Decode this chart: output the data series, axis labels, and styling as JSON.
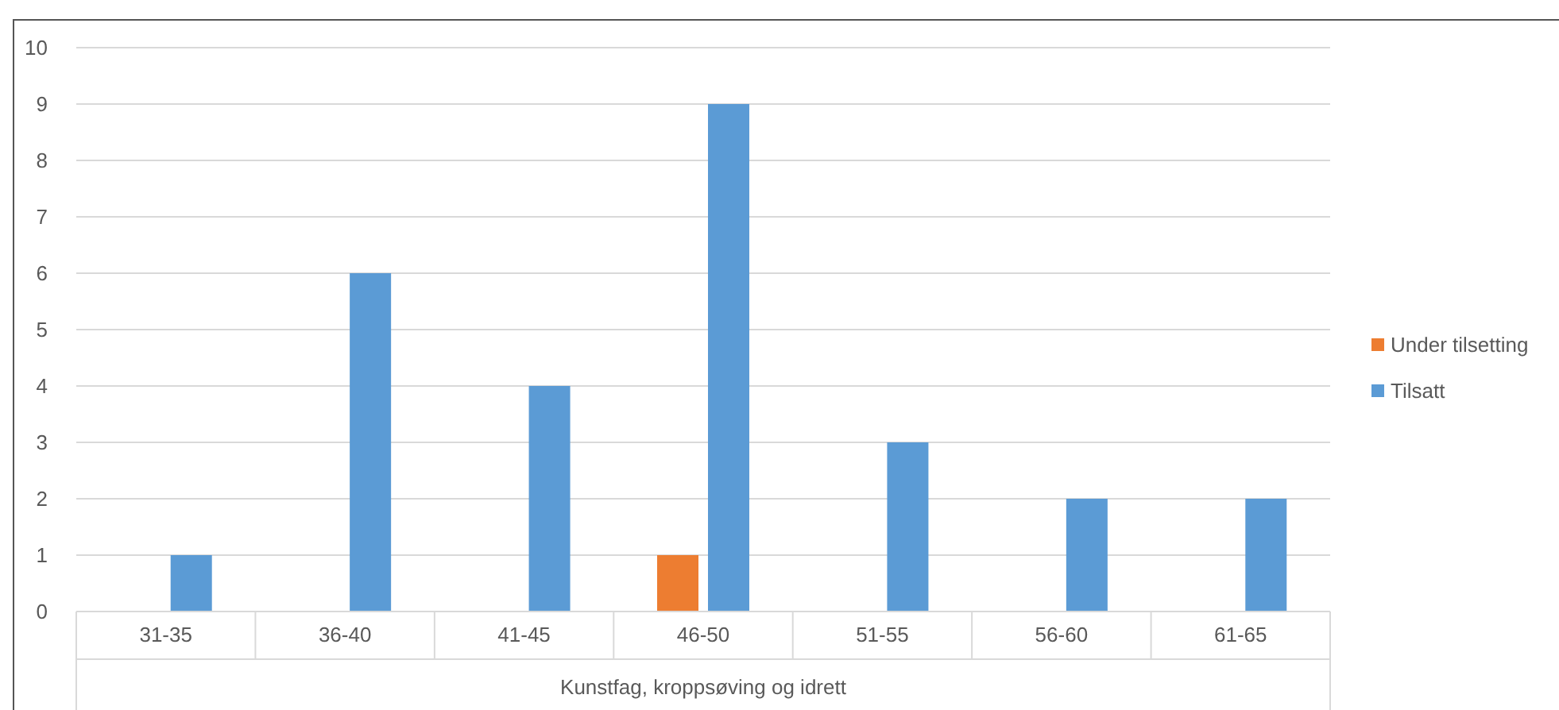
{
  "chart_data": {
    "type": "bar",
    "xlabel": "Kunstfag, kroppsøving og idrett",
    "categories": [
      "31-35",
      "36-40",
      "41-45",
      "46-50",
      "51-55",
      "56-60",
      "61-65"
    ],
    "series": [
      {
        "name": "Under tilsetting",
        "color": "#ed7d31",
        "values": [
          0,
          0,
          0,
          1,
          0,
          0,
          0
        ]
      },
      {
        "name": "Tilsatt",
        "color": "#5b9bd5",
        "values": [
          1,
          6,
          4,
          9,
          3,
          2,
          2
        ]
      }
    ],
    "ylim": [
      0,
      10
    ],
    "yticks": [
      0,
      1,
      2,
      3,
      4,
      5,
      6,
      7,
      8,
      9,
      10
    ],
    "grid": "y",
    "legend": "right"
  }
}
